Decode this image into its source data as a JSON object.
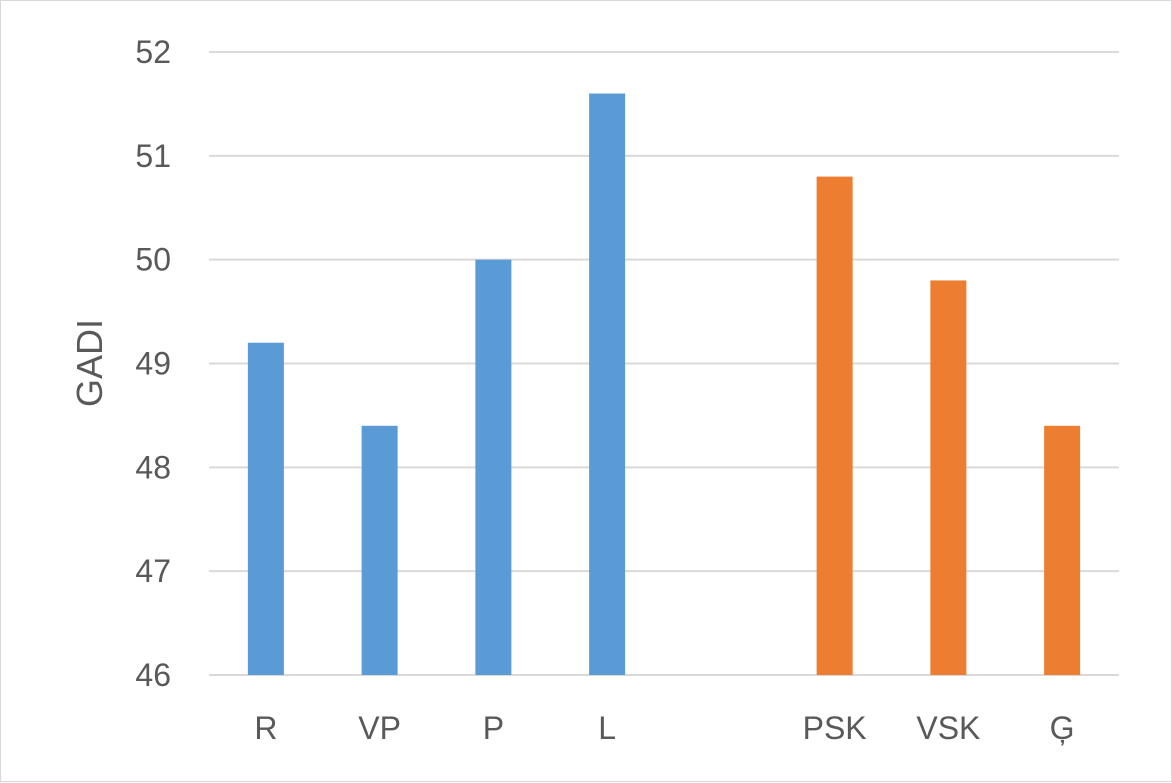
{
  "chart_data": {
    "type": "bar",
    "categories": [
      "R",
      "VP",
      "P",
      "L",
      "",
      "PSK",
      "VSK",
      "Ģ"
    ],
    "series": [
      {
        "values": [
          49.2,
          48.4,
          50.0,
          51.6,
          null,
          null,
          null,
          null
        ],
        "color": "#5b9bd5"
      },
      {
        "values": [
          null,
          null,
          null,
          null,
          null,
          50.8,
          49.8,
          48.4
        ],
        "color": "#ed7d31"
      }
    ],
    "title": "",
    "xlabel": "",
    "ylabel": "GADI",
    "ylim": [
      46,
      52
    ],
    "yticks": [
      46,
      47,
      48,
      49,
      50,
      51,
      52
    ],
    "grid": true,
    "gridColor": "#d9d9d9"
  }
}
